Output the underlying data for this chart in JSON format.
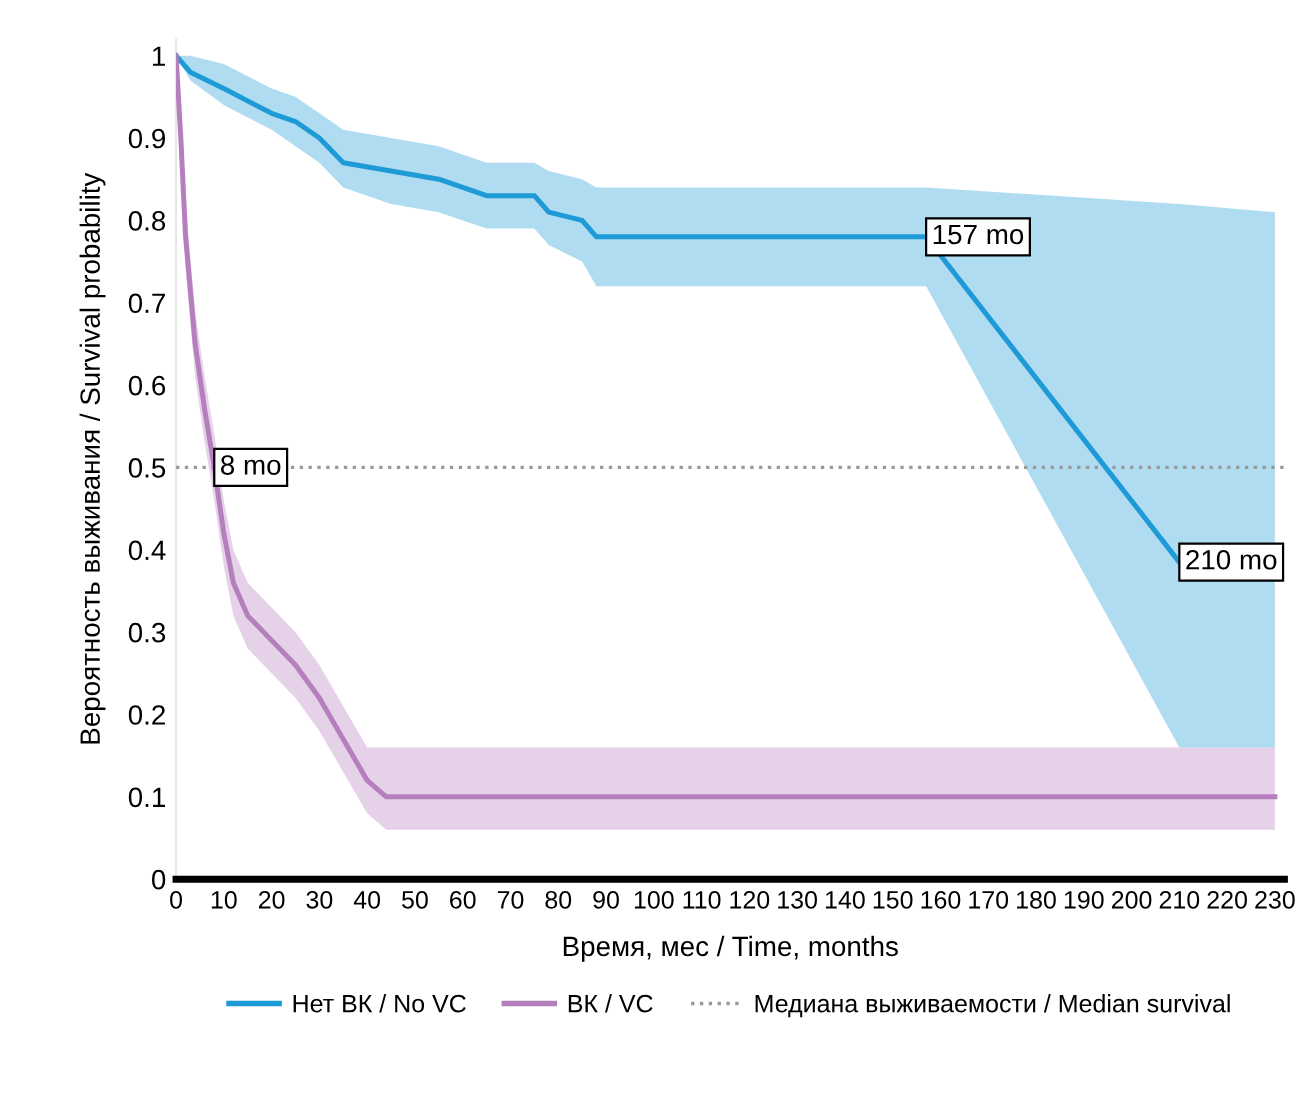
{
  "chart_data": {
    "type": "line",
    "xlabel": "Время, мес / Time, months",
    "ylabel": "Вероятность выживания / Survival probability",
    "series": [
      {
        "name": "Нет ВК / No VC",
        "color": "#1e9bd7",
        "x": [
          0,
          3,
          10,
          20,
          25,
          30,
          35,
          45,
          55,
          60,
          65,
          75,
          78,
          85,
          88,
          157,
          210,
          230
        ],
        "values": [
          1,
          0.98,
          0.96,
          0.93,
          0.92,
          0.9,
          0.87,
          0.86,
          0.85,
          0.84,
          0.83,
          0.83,
          0.81,
          0.8,
          0.78,
          0.78,
          0.385,
          null
        ],
        "upper": [
          1,
          1,
          0.99,
          0.96,
          0.95,
          0.93,
          0.91,
          0.9,
          0.89,
          0.88,
          0.87,
          0.87,
          0.86,
          0.85,
          0.84,
          0.84,
          0.82,
          0.81
        ],
        "lower": [
          1,
          0.97,
          0.94,
          0.91,
          0.89,
          0.87,
          0.84,
          0.82,
          0.81,
          0.8,
          0.79,
          0.79,
          0.77,
          0.75,
          0.72,
          0.72,
          0.16,
          0.16
        ]
      },
      {
        "name": "ВК / VC",
        "color": "#b57fbd",
        "x": [
          0,
          1,
          2,
          4,
          6,
          8,
          10,
          12,
          15,
          20,
          25,
          30,
          35,
          40,
          44,
          230
        ],
        "values": [
          1,
          0.9,
          0.78,
          0.65,
          0.57,
          0.5,
          0.42,
          0.36,
          0.32,
          0.29,
          0.26,
          0.22,
          0.17,
          0.12,
          0.1,
          0.1
        ],
        "upper": [
          1,
          0.93,
          0.82,
          0.69,
          0.61,
          0.54,
          0.46,
          0.4,
          0.36,
          0.33,
          0.3,
          0.26,
          0.21,
          0.16,
          0.16,
          0.16
        ],
        "lower": [
          1,
          0.87,
          0.74,
          0.61,
          0.53,
          0.46,
          0.38,
          0.32,
          0.28,
          0.25,
          0.22,
          0.18,
          0.13,
          0.08,
          0.06,
          0.06
        ]
      }
    ],
    "ref_lines": [
      {
        "axis": "y",
        "value": 0.5,
        "label": "Медиана выживаемости / Median survival",
        "color": "#999999",
        "line_style": "dotted"
      }
    ],
    "annotations": [
      {
        "text": "8 mo",
        "x": 8,
        "y": 0.5
      },
      {
        "text": "157 mo",
        "x": 157,
        "y": 0.78
      },
      {
        "text": "210 mo",
        "x": 210,
        "y": 0.385
      }
    ],
    "xlim": [
      0,
      232
    ],
    "xticks": [
      0,
      10,
      20,
      30,
      40,
      50,
      60,
      70,
      80,
      90,
      100,
      110,
      120,
      130,
      140,
      150,
      160,
      170,
      180,
      190,
      200,
      210,
      220,
      230
    ],
    "ylim": [
      0,
      1.02
    ],
    "yticks": [
      0,
      0.1,
      0.2,
      0.3,
      0.4,
      0.5,
      0.6,
      0.7,
      0.8,
      0.9,
      1
    ],
    "grid": false,
    "legend": "bottom",
    "marker": "none",
    "line_style": "solid"
  }
}
